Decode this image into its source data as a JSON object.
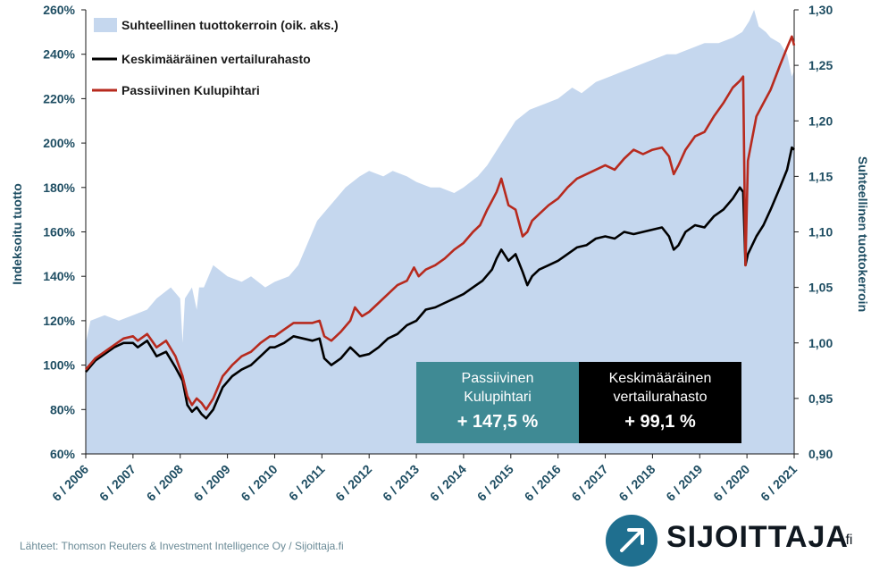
{
  "chart_data": {
    "type": "area",
    "left_axis": {
      "label": "Indeksoitu tuotto",
      "ticks": [
        "60%",
        "80%",
        "100%",
        "120%",
        "140%",
        "160%",
        "180%",
        "200%",
        "220%",
        "240%",
        "260%"
      ],
      "range": [
        60,
        260
      ]
    },
    "right_axis": {
      "label": "Suhteellinen tuottokerroin",
      "ticks": [
        "0,90",
        "0,95",
        "1,00",
        "1,05",
        "1,10",
        "1,15",
        "1,20",
        "1,25",
        "1,30"
      ],
      "range": [
        0.9,
        1.3
      ]
    },
    "x_ticks": [
      "6 / 2006",
      "6 / 2007",
      "6 / 2008",
      "6 / 2009",
      "6 / 2010",
      "6 / 2011",
      "6 / 2012",
      "6 / 2013",
      "6 / 2014",
      "6 / 2015",
      "6 / 2016",
      "6 / 2017",
      "6 / 2018",
      "6 / 2019",
      "6 / 2020",
      "6 / 2021"
    ],
    "x_range": [
      2006.5,
      2021.5
    ],
    "legend_position": "top-left",
    "series": [
      {
        "name": "Suhteellinen tuottokerroin (oik. aks.)",
        "axis": "right",
        "kind": "area",
        "color": "#c5d7ee",
        "points": [
          [
            2006.5,
            1.0
          ],
          [
            2006.6,
            1.02
          ],
          [
            2006.9,
            1.025
          ],
          [
            2007.2,
            1.02
          ],
          [
            2007.5,
            1.025
          ],
          [
            2007.8,
            1.03
          ],
          [
            2008.0,
            1.04
          ],
          [
            2008.3,
            1.05
          ],
          [
            2008.5,
            1.04
          ],
          [
            2008.55,
            1.0
          ],
          [
            2008.6,
            1.04
          ],
          [
            2008.75,
            1.05
          ],
          [
            2008.85,
            1.03
          ],
          [
            2008.9,
            1.05
          ],
          [
            2009.0,
            1.05
          ],
          [
            2009.2,
            1.07
          ],
          [
            2009.5,
            1.06
          ],
          [
            2009.8,
            1.055
          ],
          [
            2010.0,
            1.06
          ],
          [
            2010.3,
            1.05
          ],
          [
            2010.5,
            1.055
          ],
          [
            2010.8,
            1.06
          ],
          [
            2011.0,
            1.07
          ],
          [
            2011.2,
            1.09
          ],
          [
            2011.4,
            1.11
          ],
          [
            2011.6,
            1.12
          ],
          [
            2011.8,
            1.13
          ],
          [
            2012.0,
            1.14
          ],
          [
            2012.3,
            1.15
          ],
          [
            2012.5,
            1.155
          ],
          [
            2012.8,
            1.15
          ],
          [
            2013.0,
            1.155
          ],
          [
            2013.3,
            1.15
          ],
          [
            2013.5,
            1.145
          ],
          [
            2013.8,
            1.14
          ],
          [
            2014.0,
            1.14
          ],
          [
            2014.3,
            1.135
          ],
          [
            2014.5,
            1.14
          ],
          [
            2014.8,
            1.15
          ],
          [
            2015.0,
            1.16
          ],
          [
            2015.3,
            1.18
          ],
          [
            2015.6,
            1.2
          ],
          [
            2015.9,
            1.21
          ],
          [
            2016.2,
            1.215
          ],
          [
            2016.5,
            1.22
          ],
          [
            2016.8,
            1.23
          ],
          [
            2017.0,
            1.225
          ],
          [
            2017.3,
            1.235
          ],
          [
            2017.6,
            1.24
          ],
          [
            2017.9,
            1.245
          ],
          [
            2018.2,
            1.25
          ],
          [
            2018.5,
            1.255
          ],
          [
            2018.8,
            1.26
          ],
          [
            2019.0,
            1.26
          ],
          [
            2019.3,
            1.265
          ],
          [
            2019.6,
            1.27
          ],
          [
            2019.9,
            1.27
          ],
          [
            2020.2,
            1.275
          ],
          [
            2020.4,
            1.28
          ],
          [
            2020.55,
            1.29
          ],
          [
            2020.65,
            1.3
          ],
          [
            2020.75,
            1.285
          ],
          [
            2020.9,
            1.28
          ],
          [
            2021.0,
            1.275
          ],
          [
            2021.2,
            1.27
          ],
          [
            2021.35,
            1.26
          ],
          [
            2021.45,
            1.24
          ],
          [
            2021.5,
            1.245
          ]
        ]
      },
      {
        "name": "Keskimääräinen vertailurahasto",
        "axis": "left",
        "kind": "line",
        "color": "#000000",
        "points": [
          [
            2006.5,
            97
          ],
          [
            2006.7,
            102
          ],
          [
            2006.9,
            105
          ],
          [
            2007.1,
            108
          ],
          [
            2007.3,
            110
          ],
          [
            2007.5,
            110
          ],
          [
            2007.6,
            108
          ],
          [
            2007.8,
            111
          ],
          [
            2008.0,
            104
          ],
          [
            2008.2,
            106
          ],
          [
            2008.4,
            99
          ],
          [
            2008.55,
            93
          ],
          [
            2008.65,
            82
          ],
          [
            2008.75,
            79
          ],
          [
            2008.85,
            81
          ],
          [
            2008.95,
            78
          ],
          [
            2009.05,
            76
          ],
          [
            2009.2,
            80
          ],
          [
            2009.4,
            90
          ],
          [
            2009.6,
            95
          ],
          [
            2009.8,
            98
          ],
          [
            2010.0,
            100
          ],
          [
            2010.2,
            104
          ],
          [
            2010.4,
            108
          ],
          [
            2010.5,
            108
          ],
          [
            2010.7,
            110
          ],
          [
            2010.9,
            113
          ],
          [
            2011.1,
            112
          ],
          [
            2011.3,
            111
          ],
          [
            2011.45,
            112
          ],
          [
            2011.55,
            103
          ],
          [
            2011.7,
            100
          ],
          [
            2011.9,
            103
          ],
          [
            2012.1,
            108
          ],
          [
            2012.3,
            104
          ],
          [
            2012.5,
            105
          ],
          [
            2012.7,
            108
          ],
          [
            2012.9,
            112
          ],
          [
            2013.1,
            114
          ],
          [
            2013.3,
            118
          ],
          [
            2013.5,
            120
          ],
          [
            2013.7,
            125
          ],
          [
            2013.9,
            126
          ],
          [
            2014.1,
            128
          ],
          [
            2014.3,
            130
          ],
          [
            2014.5,
            132
          ],
          [
            2014.7,
            135
          ],
          [
            2014.9,
            138
          ],
          [
            2015.1,
            143
          ],
          [
            2015.2,
            148
          ],
          [
            2015.3,
            152
          ],
          [
            2015.45,
            147
          ],
          [
            2015.6,
            150
          ],
          [
            2015.75,
            142
          ],
          [
            2015.85,
            136
          ],
          [
            2015.95,
            140
          ],
          [
            2016.1,
            143
          ],
          [
            2016.3,
            145
          ],
          [
            2016.5,
            147
          ],
          [
            2016.7,
            150
          ],
          [
            2016.9,
            153
          ],
          [
            2017.1,
            154
          ],
          [
            2017.3,
            157
          ],
          [
            2017.5,
            158
          ],
          [
            2017.7,
            157
          ],
          [
            2017.9,
            160
          ],
          [
            2018.1,
            159
          ],
          [
            2018.3,
            160
          ],
          [
            2018.5,
            161
          ],
          [
            2018.7,
            162
          ],
          [
            2018.85,
            158
          ],
          [
            2018.95,
            152
          ],
          [
            2019.05,
            154
          ],
          [
            2019.2,
            160
          ],
          [
            2019.4,
            163
          ],
          [
            2019.6,
            162
          ],
          [
            2019.8,
            167
          ],
          [
            2020.0,
            170
          ],
          [
            2020.2,
            175
          ],
          [
            2020.35,
            180
          ],
          [
            2020.42,
            178
          ],
          [
            2020.47,
            145
          ],
          [
            2020.52,
            150
          ],
          [
            2020.7,
            158
          ],
          [
            2020.85,
            163
          ],
          [
            2021.0,
            170
          ],
          [
            2021.2,
            180
          ],
          [
            2021.35,
            188
          ],
          [
            2021.45,
            198
          ],
          [
            2021.5,
            197
          ]
        ]
      },
      {
        "name": "Passiivinen Kulupihtari",
        "axis": "left",
        "kind": "line",
        "color": "#b72a1e",
        "points": [
          [
            2006.5,
            98
          ],
          [
            2006.7,
            103
          ],
          [
            2006.9,
            106
          ],
          [
            2007.1,
            109
          ],
          [
            2007.3,
            112
          ],
          [
            2007.5,
            113
          ],
          [
            2007.6,
            111
          ],
          [
            2007.8,
            114
          ],
          [
            2008.0,
            108
          ],
          [
            2008.2,
            111
          ],
          [
            2008.4,
            104
          ],
          [
            2008.55,
            95
          ],
          [
            2008.65,
            86
          ],
          [
            2008.75,
            82
          ],
          [
            2008.85,
            85
          ],
          [
            2008.95,
            83
          ],
          [
            2009.05,
            80
          ],
          [
            2009.2,
            85
          ],
          [
            2009.4,
            95
          ],
          [
            2009.6,
            100
          ],
          [
            2009.8,
            104
          ],
          [
            2010.0,
            106
          ],
          [
            2010.2,
            110
          ],
          [
            2010.4,
            113
          ],
          [
            2010.5,
            113
          ],
          [
            2010.7,
            116
          ],
          [
            2010.9,
            119
          ],
          [
            2011.1,
            119
          ],
          [
            2011.3,
            119
          ],
          [
            2011.45,
            120
          ],
          [
            2011.55,
            113
          ],
          [
            2011.7,
            111
          ],
          [
            2011.9,
            115
          ],
          [
            2012.1,
            120
          ],
          [
            2012.2,
            126
          ],
          [
            2012.35,
            122
          ],
          [
            2012.5,
            124
          ],
          [
            2012.7,
            128
          ],
          [
            2012.9,
            132
          ],
          [
            2013.1,
            136
          ],
          [
            2013.3,
            138
          ],
          [
            2013.45,
            144
          ],
          [
            2013.55,
            140
          ],
          [
            2013.7,
            143
          ],
          [
            2013.9,
            145
          ],
          [
            2014.1,
            148
          ],
          [
            2014.3,
            152
          ],
          [
            2014.5,
            155
          ],
          [
            2014.7,
            160
          ],
          [
            2014.85,
            163
          ],
          [
            2015.0,
            170
          ],
          [
            2015.1,
            174
          ],
          [
            2015.2,
            178
          ],
          [
            2015.3,
            184
          ],
          [
            2015.45,
            172
          ],
          [
            2015.6,
            170
          ],
          [
            2015.75,
            158
          ],
          [
            2015.85,
            160
          ],
          [
            2015.95,
            165
          ],
          [
            2016.1,
            168
          ],
          [
            2016.3,
            172
          ],
          [
            2016.5,
            175
          ],
          [
            2016.7,
            180
          ],
          [
            2016.9,
            184
          ],
          [
            2017.1,
            186
          ],
          [
            2017.3,
            188
          ],
          [
            2017.5,
            190
          ],
          [
            2017.7,
            188
          ],
          [
            2017.9,
            193
          ],
          [
            2018.1,
            197
          ],
          [
            2018.3,
            195
          ],
          [
            2018.5,
            197
          ],
          [
            2018.7,
            198
          ],
          [
            2018.85,
            194
          ],
          [
            2018.95,
            186
          ],
          [
            2019.05,
            190
          ],
          [
            2019.2,
            197
          ],
          [
            2019.4,
            203
          ],
          [
            2019.6,
            205
          ],
          [
            2019.8,
            212
          ],
          [
            2020.0,
            218
          ],
          [
            2020.2,
            225
          ],
          [
            2020.35,
            228
          ],
          [
            2020.42,
            230
          ],
          [
            2020.47,
            145
          ],
          [
            2020.52,
            192
          ],
          [
            2020.7,
            212
          ],
          [
            2020.85,
            218
          ],
          [
            2021.0,
            224
          ],
          [
            2021.2,
            235
          ],
          [
            2021.35,
            243
          ],
          [
            2021.45,
            248
          ],
          [
            2021.5,
            244
          ]
        ]
      }
    ],
    "annotations": [
      {
        "lines": [
          "Passiivinen",
          "Kulupihtari"
        ],
        "value": "+ 147,5 %"
      },
      {
        "lines": [
          "Keskimääräinen",
          "vertailurahasto"
        ],
        "value": "+ 99,1 %"
      }
    ]
  },
  "source": "Lähteet: Thomson Reuters & Investment Intelligence Oy / Sijoittaja.fi",
  "logo": {
    "name": "SIJOITTAJA",
    "tld": ".fi",
    "icon": "arrow-up-right-icon"
  }
}
